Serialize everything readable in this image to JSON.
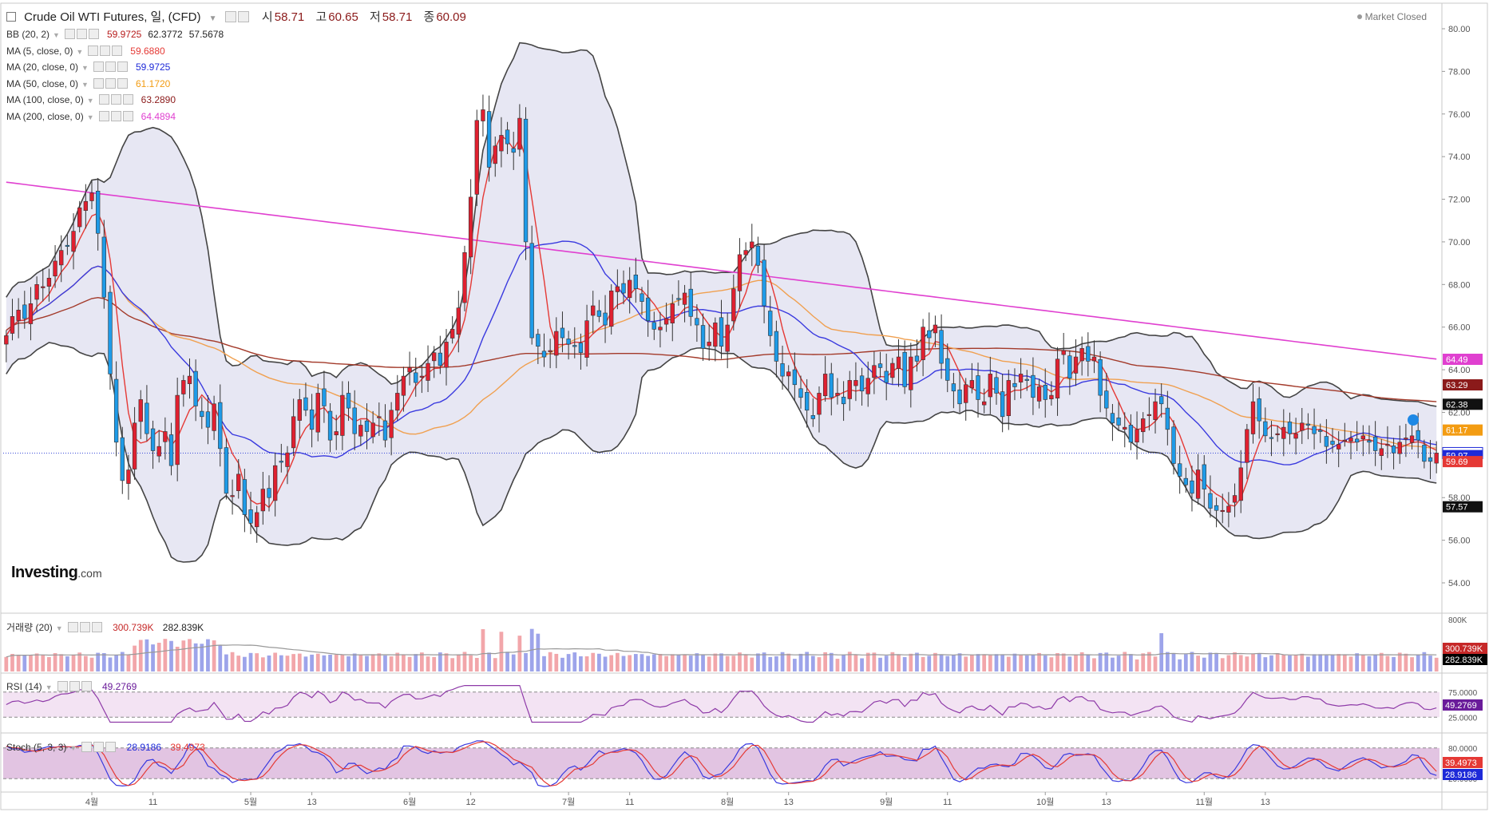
{
  "header": {
    "title": "Crude Oil WTI Futures, 일, (CFD)",
    "open_label": "시",
    "open": "58.71",
    "high_label": "고",
    "high": "60.65",
    "low_label": "저",
    "low": "58.71",
    "close_label": "종",
    "close": "60.09",
    "status": "Market Closed",
    "logo": "Investing",
    "logo_domain": ".com"
  },
  "indicators": [
    {
      "name": "BB (20, 2)",
      "values": [
        "59.9725",
        "62.3772",
        "57.5678"
      ],
      "color": "#b71c1c"
    },
    {
      "name": "MA (5, close, 0)",
      "values": [
        "59.6880"
      ],
      "color": "#e53935"
    },
    {
      "name": "MA (20, close, 0)",
      "values": [
        "59.9725"
      ],
      "color": "#1e2ad8"
    },
    {
      "name": "MA (50, close, 0)",
      "values": [
        "61.1720"
      ],
      "color": "#f39c12"
    },
    {
      "name": "MA (100, close, 0)",
      "values": [
        "63.2890"
      ],
      "color": "#8b1a1a"
    },
    {
      "name": "MA (200, close, 0)",
      "values": [
        "64.4894"
      ],
      "color": "#e040d0"
    }
  ],
  "volume_pane": {
    "name": "거래량 (20)",
    "values": [
      "300.739K",
      "282.839K"
    ],
    "axis_top": "800K",
    "tags": [
      {
        "text": "300.739K",
        "color": "#c62828"
      },
      {
        "text": "282.839K",
        "color": "#000000"
      }
    ]
  },
  "rsi_pane": {
    "name": "RSI (14)",
    "value": "49.2769",
    "axis": [
      "75.0000",
      "25.0000"
    ],
    "tag": {
      "text": "49.2769",
      "color": "#6a1b9a"
    }
  },
  "stoch_pane": {
    "name": "Stoch (5, 3, 3)",
    "values": [
      "28.9186",
      "39.4973"
    ],
    "axis": [
      "80.0000",
      "20.0000"
    ],
    "tags": [
      {
        "text": "39.4973",
        "color": "#e53935"
      },
      {
        "text": "28.9186",
        "color": "#1e2ad8"
      }
    ]
  },
  "price_tags": [
    {
      "text": "64.49",
      "value": 64.49,
      "color": "#e040d0"
    },
    {
      "text": "63.29",
      "value": 63.29,
      "color": "#8b1a1a"
    },
    {
      "text": "62.38",
      "value": 62.38,
      "color": "#111111"
    },
    {
      "text": "61.17",
      "value": 61.17,
      "color": "#f39c12"
    },
    {
      "text": "60.09",
      "value": 60.09,
      "color": "#ffffff"
    },
    {
      "text": "59.97",
      "value": 59.97,
      "color": "#1e2ad8"
    },
    {
      "text": "59.69",
      "value": 59.69,
      "color": "#e53935"
    },
    {
      "text": "57.57",
      "value": 57.57,
      "color": "#111111"
    }
  ],
  "chart_data": {
    "type": "candlestick",
    "ylim": [
      53.0,
      81.0
    ],
    "y_ticks": [
      "80.00",
      "78.00",
      "76.00",
      "74.00",
      "72.00",
      "70.00",
      "68.00",
      "66.00",
      "64.00",
      "62.00",
      "60.00",
      "58.00",
      "56.00",
      "54.00"
    ],
    "x_tick_labels": [
      "4월",
      "11",
      "5월",
      "13",
      "6월",
      "12",
      "7월",
      "11",
      "8월",
      "13",
      "9월",
      "11",
      "10월",
      "13",
      "11월",
      "13"
    ],
    "x_tick_indices": [
      14,
      24,
      40,
      50,
      66,
      76,
      92,
      102,
      118,
      128,
      144,
      154,
      170,
      180,
      196,
      206
    ],
    "last_close": 60.09,
    "close": [
      65.6,
      66.5,
      66.8,
      66.4,
      67.1,
      68.0,
      67.9,
      68.3,
      69.1,
      69.6,
      69.8,
      70.5,
      71.6,
      71.9,
      72.3,
      70.4,
      67.4,
      63.8,
      60.6,
      58.8,
      59.3,
      61.5,
      62.6,
      61.0,
      60.2,
      60.4,
      61.1,
      59.5,
      62.8,
      63.5,
      63.7,
      62.3,
      61.8,
      61.3,
      62.4,
      60.3,
      58.2,
      58.1,
      59.1,
      57.2,
      56.8,
      57.3,
      58.4,
      58.0,
      59.5,
      59.7,
      60.1,
      61.8,
      62.6,
      62.1,
      61.2,
      62.9,
      62.3,
      60.7,
      61.1,
      62.8,
      62.2,
      61.0,
      61.4,
      61.1,
      61.5,
      61.8,
      60.7,
      62.1,
      62.9,
      63.7,
      64.1,
      63.4,
      63.7,
      64.3,
      64.8,
      64.2,
      65.3,
      65.9,
      66.9,
      69.5,
      72.1,
      75.7,
      76.2,
      73.5,
      74.5,
      75.0,
      74.6,
      74.2,
      75.8,
      70.0,
      65.5,
      65.1,
      64.6,
      64.9,
      65.8,
      65.5,
      65.2,
      65.1,
      64.8,
      66.3,
      67.0,
      66.5,
      66.1,
      67.7,
      67.9,
      67.6,
      68.2,
      67.8,
      67.2,
      66.3,
      65.9,
      66.0,
      66.4,
      67.1,
      67.3,
      67.6,
      66.5,
      66.1,
      65.0,
      65.3,
      66.2,
      65.1,
      66.1,
      67.8,
      69.4,
      69.6,
      70.0,
      68.9,
      67.0,
      65.6,
      64.4,
      63.7,
      63.9,
      63.3,
      62.7,
      62.1,
      61.7,
      62.9,
      63.8,
      62.7,
      62.9,
      62.4,
      63.5,
      63.5,
      63.0,
      63.6,
      64.2,
      64.1,
      63.4,
      64.3,
      64.6,
      63.2,
      64.6,
      64.4,
      66.0,
      65.5,
      66.1,
      64.3,
      63.5,
      63.0,
      62.4,
      63.3,
      63.5,
      62.6,
      62.5,
      63.8,
      62.9,
      61.8,
      63.5,
      63.2,
      63.8,
      63.5,
      62.7,
      63.2,
      62.6,
      62.8,
      64.5,
      64.9,
      63.6,
      64.6,
      65.0,
      64.4,
      64.6,
      62.8,
      62.2,
      61.5,
      61.4,
      61.3,
      60.6,
      61.2,
      61.7,
      61.9,
      62.5,
      62.4,
      61.2,
      59.6,
      59.0,
      58.6,
      58.2,
      59.3,
      58.4,
      57.5,
      57.4,
      57.4,
      57.6,
      58.1,
      59.4,
      61.2,
      62.5,
      61.6,
      60.9,
      60.8,
      61.0,
      61.3,
      61.0,
      61.0,
      61.5,
      61.4,
      61.0,
      61.1,
      60.4,
      60.5,
      60.5,
      60.7,
      60.8,
      60.6,
      60.9,
      60.6,
      60.2,
      60.3,
      60.5,
      60.1,
      60.6,
      60.8,
      60.9,
      60.7,
      59.7,
      59.7,
      60.09
    ]
  }
}
